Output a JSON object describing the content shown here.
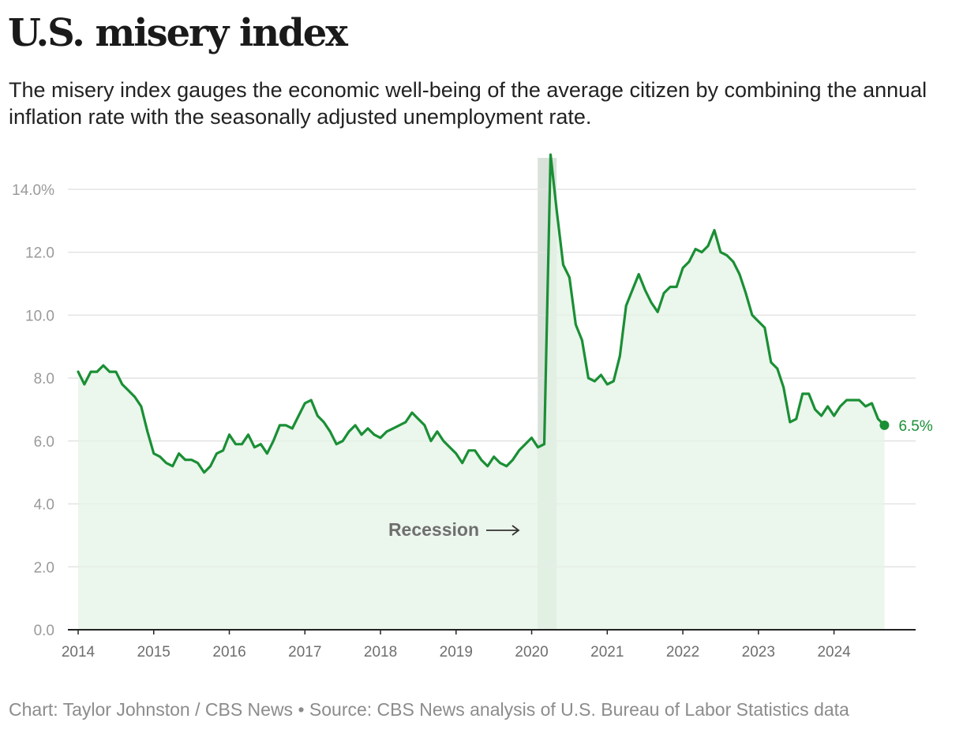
{
  "header": {
    "title": "U.S. misery index",
    "subtitle": "The misery index gauges the economic well-being of the average citizen by combining the annual inflation rate with the seasonally adjusted unemployment rate."
  },
  "footer": {
    "credit": "Chart: Taylor Johnston / CBS News • Source: CBS News analysis of U.S. Bureau of Labor Statistics data"
  },
  "colors": {
    "line": "#1a8f35",
    "area": "#e4f3e6",
    "recession_band": "#d9e2da",
    "grid": "#e3e3e3",
    "axis": "#222222"
  },
  "chart_data": {
    "type": "area",
    "title": "U.S. misery index",
    "xlabel": "",
    "ylabel": "",
    "ylim": [
      0,
      15
    ],
    "xlim": [
      2014,
      2025.08
    ],
    "yticks": [
      0,
      2,
      4,
      6,
      8,
      10,
      12,
      14
    ],
    "ytick_labels": [
      "0.0",
      "2.0",
      "4.0",
      "6.0",
      "8.0",
      "10.0",
      "12.0",
      "14.0%"
    ],
    "xticks": [
      2014,
      2015,
      2016,
      2017,
      2018,
      2019,
      2020,
      2021,
      2022,
      2023,
      2024
    ],
    "xtick_labels": [
      "2014",
      "2015",
      "2016",
      "2017",
      "2018",
      "2019",
      "2020",
      "2021",
      "2022",
      "2023",
      "2024"
    ],
    "grid": true,
    "recession": {
      "label": "Recession",
      "start": 2020.08,
      "end": 2020.33
    },
    "end_label": "6.5%",
    "series": [
      {
        "x": [
          2014.0,
          2014.083,
          2014.167,
          2014.25,
          2014.333,
          2014.417,
          2014.5,
          2014.583,
          2014.667,
          2014.75,
          2014.833,
          2014.917,
          2015.0,
          2015.083,
          2015.167,
          2015.25,
          2015.333,
          2015.417,
          2015.5,
          2015.583,
          2015.667,
          2015.75,
          2015.833,
          2015.917,
          2016.0,
          2016.083,
          2016.167,
          2016.25,
          2016.333,
          2016.417,
          2016.5,
          2016.583,
          2016.667,
          2016.75,
          2016.833,
          2016.917,
          2017.0,
          2017.083,
          2017.167,
          2017.25,
          2017.333,
          2017.417,
          2017.5,
          2017.583,
          2017.667,
          2017.75,
          2017.833,
          2017.917,
          2018.0,
          2018.083,
          2018.167,
          2018.25,
          2018.333,
          2018.417,
          2018.5,
          2018.583,
          2018.667,
          2018.75,
          2018.833,
          2018.917,
          2019.0,
          2019.083,
          2019.167,
          2019.25,
          2019.333,
          2019.417,
          2019.5,
          2019.583,
          2019.667,
          2019.75,
          2019.833,
          2019.917,
          2020.0,
          2020.083,
          2020.167,
          2020.25,
          2020.333,
          2020.417,
          2020.5,
          2020.583,
          2020.667,
          2020.75,
          2020.833,
          2020.917,
          2021.0,
          2021.083,
          2021.167,
          2021.25,
          2021.333,
          2021.417,
          2021.5,
          2021.583,
          2021.667,
          2021.75,
          2021.833,
          2021.917,
          2022.0,
          2022.083,
          2022.167,
          2022.25,
          2022.333,
          2022.417,
          2022.5,
          2022.583,
          2022.667,
          2022.75,
          2022.833,
          2022.917,
          2023.0,
          2023.083,
          2023.167,
          2023.25,
          2023.333,
          2023.417,
          2023.5,
          2023.583,
          2023.667,
          2023.75,
          2023.833,
          2023.917,
          2024.0,
          2024.083,
          2024.167,
          2024.25,
          2024.333,
          2024.417,
          2024.5,
          2024.583,
          2024.667
        ],
        "values": [
          8.2,
          7.8,
          8.2,
          8.2,
          8.4,
          8.2,
          8.2,
          7.8,
          7.6,
          7.4,
          7.1,
          6.3,
          5.6,
          5.5,
          5.3,
          5.2,
          5.6,
          5.4,
          5.4,
          5.3,
          5.0,
          5.2,
          5.6,
          5.7,
          6.2,
          5.9,
          5.9,
          6.2,
          5.8,
          5.9,
          5.6,
          6.0,
          6.5,
          6.5,
          6.4,
          6.8,
          7.2,
          7.3,
          6.8,
          6.6,
          6.3,
          5.9,
          6.0,
          6.3,
          6.5,
          6.2,
          6.4,
          6.2,
          6.1,
          6.3,
          6.4,
          6.5,
          6.6,
          6.9,
          6.7,
          6.5,
          6.0,
          6.3,
          6.0,
          5.8,
          5.6,
          5.3,
          5.7,
          5.7,
          5.4,
          5.2,
          5.5,
          5.3,
          5.2,
          5.4,
          5.7,
          5.9,
          6.1,
          5.8,
          5.9,
          15.1,
          13.3,
          11.6,
          11.2,
          9.7,
          9.2,
          8.0,
          7.9,
          8.1,
          7.8,
          7.9,
          8.7,
          10.3,
          10.8,
          11.3,
          10.8,
          10.4,
          10.1,
          10.7,
          10.9,
          10.9,
          11.5,
          11.7,
          12.1,
          12.0,
          12.2,
          12.7,
          12.0,
          11.9,
          11.7,
          11.3,
          10.7,
          10.0,
          9.8,
          9.6,
          8.5,
          8.3,
          7.7,
          6.6,
          6.7,
          7.5,
          7.5,
          7.0,
          6.8,
          7.1,
          6.8,
          7.1,
          7.3,
          7.3,
          7.3,
          7.1,
          7.2,
          6.7,
          6.5
        ]
      }
    ]
  }
}
